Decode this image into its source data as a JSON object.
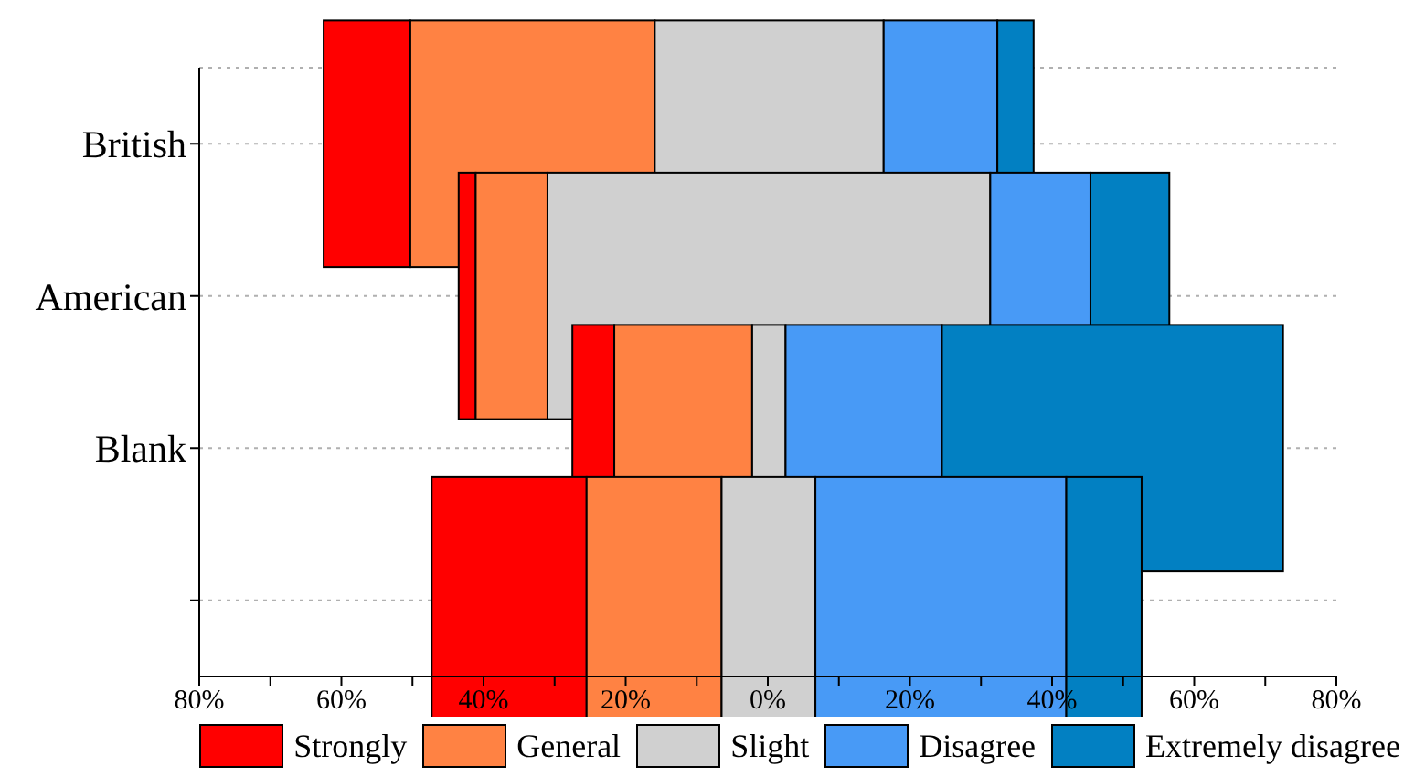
{
  "chart_data": {
    "type": "bar",
    "orientation": "horizontal",
    "categories": [
      "British",
      "American",
      "Blank",
      null
    ],
    "series": [
      {
        "name": "Strongly",
        "color": "#ff0000",
        "base": [
          -62.5,
          -43.5,
          -27.5,
          -47.3
        ],
        "values": [
          12.2,
          2.4,
          5.9,
          21.8
        ]
      },
      {
        "name": "General",
        "color": "#ff8243",
        "base": [
          -50.3,
          -41.1,
          -21.6,
          -25.5
        ],
        "values": [
          34.4,
          10.1,
          19.4,
          19.0
        ]
      },
      {
        "name": "Slight",
        "color": "#d0d0d0",
        "base": [
          -15.9,
          -31.0,
          -2.2,
          -6.5
        ],
        "values": [
          32.2,
          62.3,
          4.7,
          13.2
        ]
      },
      {
        "name": "Disagree",
        "color": "#489af6",
        "base": [
          16.3,
          31.3,
          2.5,
          6.7
        ],
        "values": [
          16.0,
          14.1,
          22.0,
          35.3
        ]
      },
      {
        "name": "Extremely disagree",
        "color": "#0280c2",
        "base": [
          32.3,
          45.4,
          24.5,
          42.0
        ],
        "values": [
          5.1,
          11.1,
          48.0,
          10.6
        ]
      }
    ],
    "xlim": [
      -80,
      80
    ],
    "xticks": [
      {
        "value": -80,
        "label": "80%"
      },
      {
        "value": -70,
        "label": null
      },
      {
        "value": -60,
        "label": "60%"
      },
      {
        "value": -50,
        "label": null
      },
      {
        "value": -40,
        "label": "40%"
      },
      {
        "value": -30,
        "label": null
      },
      {
        "value": -20,
        "label": "20%"
      },
      {
        "value": -10,
        "label": null
      },
      {
        "value": 0,
        "label": "0%"
      },
      {
        "value": 10,
        "label": null
      },
      {
        "value": 20,
        "label": "20%"
      },
      {
        "value": 30,
        "label": null
      },
      {
        "value": 40,
        "label": "40%"
      },
      {
        "value": 50,
        "label": null
      },
      {
        "value": 60,
        "label": "60%"
      },
      {
        "value": 70,
        "label": null
      },
      {
        "value": 80,
        "label": "80%"
      }
    ],
    "grid": "y",
    "legend": "bottom"
  }
}
